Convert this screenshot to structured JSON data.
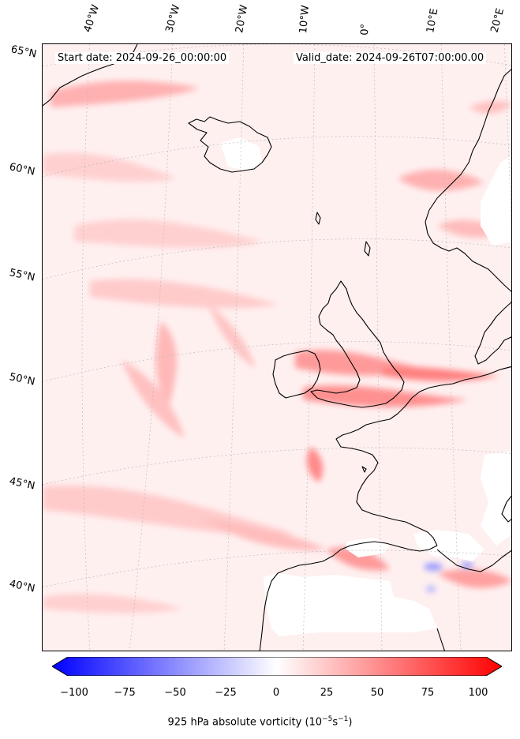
{
  "header": {
    "start_date": "Start date: 2024-09-26_00:00:00",
    "valid_date": "Valid_date: 2024-09-26T07:00:00.00"
  },
  "lon_labels": [
    "40°W",
    "30°W",
    "20°W",
    "10°W",
    "0°",
    "10°E",
    "20°E"
  ],
  "lat_labels": [
    "65°N",
    "60°N",
    "55°N",
    "50°N",
    "45°N",
    "40°N"
  ],
  "colorbar": {
    "ticks": [
      "−100",
      "−75",
      "−50",
      "−25",
      "0",
      "25",
      "50",
      "75",
      "100"
    ],
    "label_prefix": "925 hPa absolute vorticity (10",
    "label_exp1": "−5",
    "label_mid": "s",
    "label_exp2": "−1",
    "label_suffix": ")",
    "low_color": "#0000ff",
    "mid_color": "#ffffff",
    "high_color": "#ff0000"
  },
  "colors": {
    "background_field": "#fff0f0",
    "light_vorticity": "#ffd6d6",
    "medium_vorticity": "#ffb0b0",
    "strong_vorticity": "#ff7070",
    "negative_vorticity": "#9a9aff",
    "coastline": "#000000"
  }
}
